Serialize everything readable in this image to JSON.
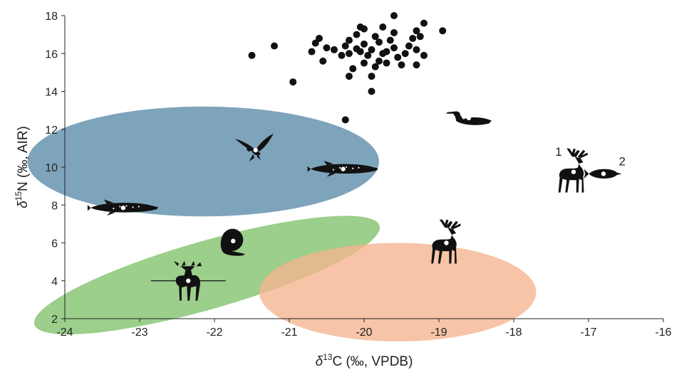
{
  "chart_data": {
    "type": "scatter",
    "xlabel": {
      "pre": "δ",
      "sup": "13",
      "post": "C (‰, VPDB)"
    },
    "ylabel": {
      "pre": "δ",
      "sup": "15",
      "post": "N (‰, AIR)"
    },
    "xlim": [
      -24,
      -16
    ],
    "ylim": [
      2,
      18
    ],
    "x_ticks": [
      -24,
      -23,
      -22,
      -21,
      -20,
      -19,
      -18,
      -17,
      -16
    ],
    "y_ticks": [
      2,
      4,
      6,
      8,
      10,
      12,
      14,
      16,
      18
    ],
    "grid": false,
    "legend": "none",
    "points": [
      [
        -21.5,
        15.9
      ],
      [
        -21.2,
        16.4
      ],
      [
        -20.95,
        14.5
      ],
      [
        -20.7,
        16.1
      ],
      [
        -20.65,
        16.55
      ],
      [
        -20.6,
        16.8
      ],
      [
        -20.55,
        15.6
      ],
      [
        -20.5,
        16.3
      ],
      [
        -20.4,
        16.2
      ],
      [
        -20.3,
        15.9
      ],
      [
        -20.25,
        16.4
      ],
      [
        -20.2,
        16.0
      ],
      [
        -20.2,
        16.7
      ],
      [
        -20.15,
        15.2
      ],
      [
        -20.1,
        16.25
      ],
      [
        -20.1,
        17.0
      ],
      [
        -20.05,
        17.4
      ],
      [
        -20.0,
        15.5
      ],
      [
        -20.0,
        16.5
      ],
      [
        -20.0,
        17.3
      ],
      [
        -19.95,
        15.9
      ],
      [
        -19.9,
        16.2
      ],
      [
        -19.85,
        16.9
      ],
      [
        -19.85,
        15.3
      ],
      [
        -19.8,
        16.6
      ],
      [
        -19.8,
        15.6
      ],
      [
        -19.75,
        16.0
      ],
      [
        -19.75,
        17.4
      ],
      [
        -19.7,
        16.1
      ],
      [
        -19.65,
        16.7
      ],
      [
        -19.6,
        17.1
      ],
      [
        -19.6,
        16.3
      ],
      [
        -19.55,
        15.8
      ],
      [
        -19.5,
        15.4
      ],
      [
        -19.45,
        16.0
      ],
      [
        -19.4,
        16.4
      ],
      [
        -19.35,
        16.8
      ],
      [
        -19.3,
        17.2
      ],
      [
        -19.25,
        16.9
      ],
      [
        -19.2,
        15.9
      ],
      [
        -19.6,
        18.0
      ],
      [
        -19.2,
        17.6
      ],
      [
        -18.95,
        17.2
      ],
      [
        -19.3,
        16.2
      ],
      [
        -19.3,
        15.4
      ],
      [
        -20.2,
        14.8
      ],
      [
        -19.9,
        14.8
      ],
      [
        -19.9,
        14.0
      ],
      [
        -20.05,
        16.1
      ],
      [
        -19.7,
        15.5
      ],
      [
        -20.25,
        12.5
      ]
    ],
    "regions": [
      {
        "color": "#5a8aa8",
        "cx": -22.15,
        "cy": 10.3,
        "rx": 2.35,
        "ry": 2.9,
        "rotate": 0
      },
      {
        "color": "#7fc26a",
        "cx": -22.1,
        "cy": 4.3,
        "rx": 2.4,
        "ry": 1.8,
        "rotate": -16
      },
      {
        "color": "#f5b48e",
        "cx": -19.55,
        "cy": 3.4,
        "rx": 1.85,
        "ry": 2.6,
        "rotate": 0
      }
    ],
    "taxa": [
      {
        "icon": "pike-icon",
        "x": -23.22,
        "y": 7.85
      },
      {
        "icon": "pike-icon",
        "x": -20.28,
        "y": 9.9
      },
      {
        "icon": "eagle-icon",
        "x": -21.45,
        "y": 10.9
      },
      {
        "icon": "loon-icon",
        "x": -18.6,
        "y": 12.6
      },
      {
        "icon": "beaver-icon",
        "x": -21.75,
        "y": 6.1
      },
      {
        "icon": "moose-icon",
        "x": -22.35,
        "y": 4.0
      },
      {
        "icon": "caribou-icon",
        "x": -18.9,
        "y": 6.0
      },
      {
        "icon": "caribou-icon",
        "x": -17.2,
        "y": 9.75
      },
      {
        "icon": "whitefish-icon",
        "x": -16.8,
        "y": 9.65
      }
    ],
    "error_bars": [
      {
        "x": -22.35,
        "y": 4.0,
        "x_err": 0.5,
        "y_err": 0.3
      }
    ],
    "annotations": [
      {
        "text": "1",
        "x": -17.4,
        "y": 10.6
      },
      {
        "text": "2",
        "x": -16.55,
        "y": 10.1
      }
    ]
  }
}
